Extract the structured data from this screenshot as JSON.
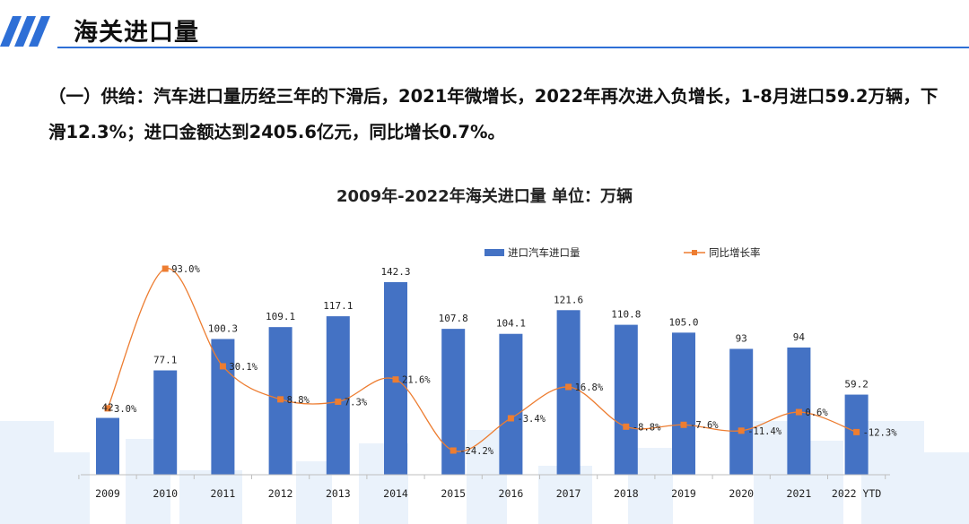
{
  "header": {
    "title": "海关进口量",
    "accent_color": "#2e6fd6"
  },
  "description": "（一）供给：汽车进口量历经三年的下滑后，2021年微增长，2022年再次进入负增长，1-8月进口59.2万辆，下滑12.3%；进口金额达到2405.6亿元，同比增长0.7%。",
  "chart_data": {
    "type": "bar",
    "title": "2009年-2022年海关进口量 单位：万辆",
    "categories": [
      "2009",
      "2010",
      "2011",
      "2012",
      "2013",
      "2014",
      "2015",
      "2016",
      "2017",
      "2018",
      "2019",
      "2020",
      "2021",
      "2022 YTD"
    ],
    "series": [
      {
        "name": "进口汽车进口量",
        "type": "bar",
        "color": "#4472c4",
        "values": [
          42,
          77.1,
          100.3,
          109.1,
          117.1,
          142.3,
          107.8,
          104.1,
          121.6,
          110.8,
          105.0,
          93,
          94,
          59.2
        ],
        "labels": [
          "42",
          "77.1",
          "100.3",
          "109.1",
          "117.1",
          "142.3",
          "107.8",
          "104.1",
          "121.6",
          "110.8",
          "105.0",
          "93",
          "94",
          "59.2"
        ]
      },
      {
        "name": "同比增长率",
        "type": "line",
        "color": "#ed7d31",
        "values": [
          3.0,
          93.0,
          30.1,
          8.8,
          7.3,
          21.6,
          -24.2,
          -3.4,
          16.8,
          -8.8,
          -7.6,
          -11.4,
          0.6,
          -12.3
        ],
        "labels": [
          "3.0%",
          "93.0%",
          "30.1%",
          "8.8%",
          "7.3%",
          "21.6%",
          "-24.2%",
          "-3.4%",
          "16.8%",
          "-8.8%",
          "-7.6%",
          "-11.4%",
          "0.6%",
          "-12.3%"
        ]
      }
    ],
    "bar_axis": [
      0,
      142.3
    ],
    "rate_axis": [
      -24.2,
      93.0
    ],
    "legend": "top-center",
    "grid": false
  }
}
